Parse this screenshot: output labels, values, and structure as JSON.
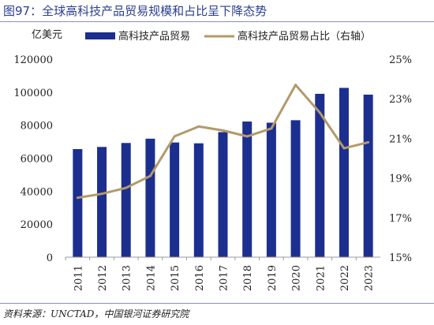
{
  "figure_title": "图97：全球高科技产品贸易规模和占比呈下降态势",
  "source": "资料来源：UNCTAD，中国银河证券研究院",
  "colors": {
    "bar": "#1c2f8e",
    "line": "#b39a6a",
    "title": "#2b3f8f"
  },
  "chart_data": {
    "type": "bar",
    "title": "",
    "ylabel": "亿美元",
    "y2label": "",
    "categories": [
      "2011",
      "2012",
      "2013",
      "2014",
      "2015",
      "2016",
      "2017",
      "2018",
      "2019",
      "2020",
      "2021",
      "2022",
      "2023"
    ],
    "ylim": [
      0,
      120000
    ],
    "yticks": [
      0,
      20000,
      40000,
      60000,
      80000,
      100000,
      120000
    ],
    "y2lim": [
      15,
      25
    ],
    "y2ticks": [
      "15%",
      "17%",
      "19%",
      "21%",
      "23%",
      "25%"
    ],
    "legend_position": "top",
    "grid": false,
    "series": [
      {
        "name": "高科技产品贸易",
        "type": "bar",
        "axis": "left",
        "values": [
          65500,
          66800,
          69200,
          71800,
          69500,
          69000,
          75800,
          82200,
          81500,
          83000,
          99000,
          102600,
          98500
        ]
      },
      {
        "name": "高科技产品贸易占比（右轴）",
        "type": "line",
        "axis": "right",
        "unit": "%",
        "values": [
          18.0,
          18.2,
          18.5,
          19.1,
          21.1,
          21.6,
          21.4,
          21.1,
          21.5,
          23.7,
          22.3,
          20.5,
          20.8
        ]
      }
    ]
  }
}
